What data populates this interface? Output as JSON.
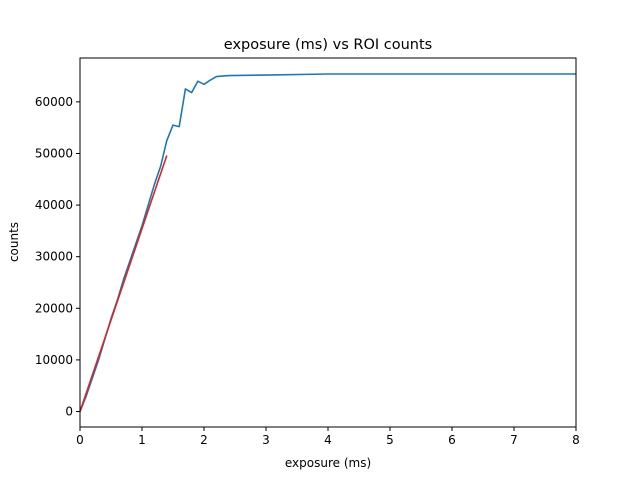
{
  "chart_data": {
    "type": "line",
    "title": "exposure (ms) vs ROI counts",
    "xlabel": "exposure (ms)",
    "ylabel": "counts",
    "xlim": [
      0,
      8
    ],
    "ylim": [
      -3000,
      68500
    ],
    "xticks": [
      0,
      1,
      2,
      3,
      4,
      5,
      6,
      7,
      8
    ],
    "yticks": [
      0,
      10000,
      20000,
      30000,
      40000,
      50000,
      60000
    ],
    "grid": false,
    "legend": "none",
    "series": [
      {
        "color": "#1f77b4",
        "x": [
          0,
          0.1,
          0.2,
          0.3,
          0.4,
          0.5,
          0.6,
          0.7,
          0.8,
          0.9,
          1.0,
          1.1,
          1.2,
          1.3,
          1.4,
          1.5,
          1.6,
          1.7,
          1.8,
          1.9,
          2.0,
          2.1,
          2.2,
          2.4,
          3.0,
          4.0,
          5.0,
          6.0,
          7.0,
          8.0
        ],
        "y": [
          0,
          3000,
          6500,
          10000,
          14000,
          18000,
          21500,
          25500,
          29000,
          32500,
          36000,
          40000,
          44000,
          47500,
          52500,
          55500,
          55200,
          62500,
          61800,
          64000,
          63400,
          64200,
          64900,
          65100,
          65200,
          65400,
          65400,
          65400,
          65400,
          65400
        ]
      },
      {
        "color": "#d62728",
        "x": [
          0,
          1.4
        ],
        "y": [
          0,
          49600
        ]
      }
    ]
  }
}
